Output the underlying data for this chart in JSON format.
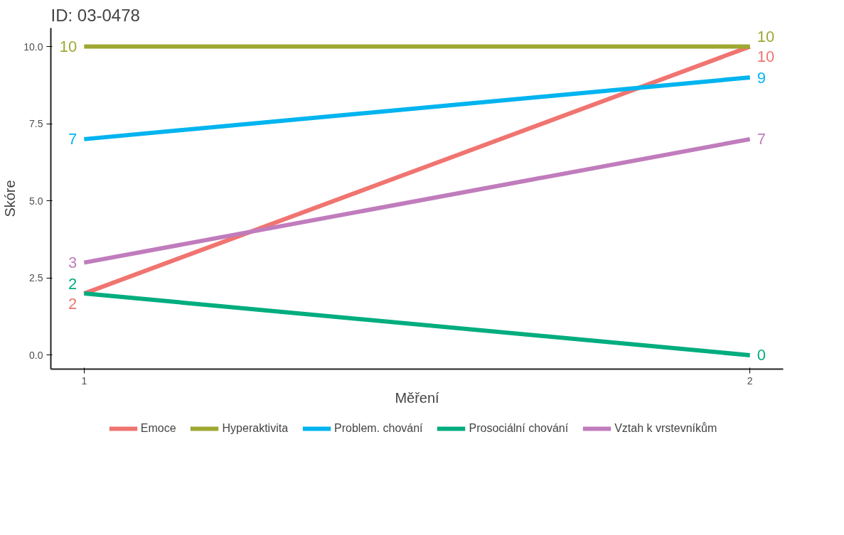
{
  "chart_data": {
    "type": "line",
    "title": "ID: 03-0478",
    "xlabel": "Měření",
    "ylabel": "Skóre",
    "x": [
      1,
      2
    ],
    "xlim": [
      0.95,
      2.05
    ],
    "xticks": [
      1,
      2
    ],
    "ylim": [
      -0.45,
      10.6
    ],
    "yticks": [
      {
        "value": 0,
        "label": "0.0"
      },
      {
        "value": 2.5,
        "label": "2.5"
      },
      {
        "value": 5,
        "label": "5.0"
      },
      {
        "value": 7.5,
        "label": "7.5"
      },
      {
        "value": 10,
        "label": "10.0"
      }
    ],
    "series": [
      {
        "name": "Emoce",
        "color": "#f07470",
        "values": [
          2,
          10
        ]
      },
      {
        "name": "Hyperaktivita",
        "color": "#9ea832",
        "values": [
          10,
          10
        ]
      },
      {
        "name": "Problem. chování",
        "color": "#00b4ef",
        "values": [
          7,
          9
        ]
      },
      {
        "name": "Prosociální chování",
        "color": "#00ad7f",
        "values": [
          2,
          0
        ]
      },
      {
        "name": "Vztah k vrstevníkům",
        "color": "#c07cbc",
        "values": [
          3,
          7
        ]
      }
    ],
    "data_labels": true,
    "grid": false,
    "legend": "bottom",
    "marker": "none",
    "line_style": "solid"
  }
}
